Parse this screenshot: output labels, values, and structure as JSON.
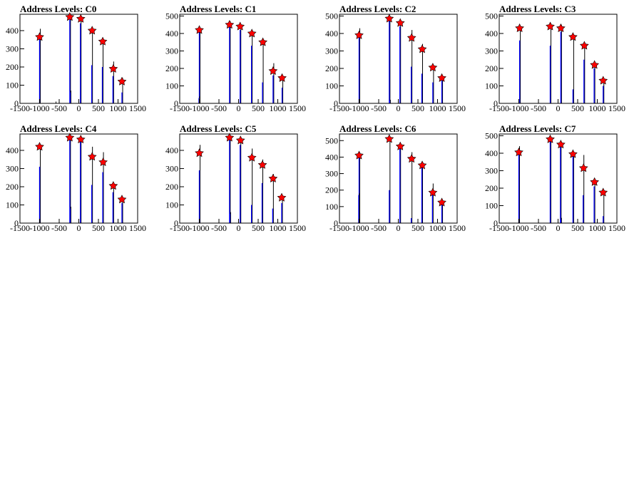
{
  "chart_data": [
    {
      "type": "bar",
      "title": "Address Levels: C0",
      "xlim": [
        -1500,
        1500
      ],
      "ylim": [
        0,
        490
      ],
      "xticks": [
        -1500,
        -1000,
        -500,
        0,
        500,
        1000,
        1500
      ],
      "yticks": [
        0,
        100,
        200,
        300,
        400
      ],
      "peaks": [
        {
          "x": -1000,
          "y": 365
        },
        {
          "x": -230,
          "y": 475
        },
        {
          "x": 50,
          "y": 465
        },
        {
          "x": 340,
          "y": 400
        },
        {
          "x": 610,
          "y": 340
        },
        {
          "x": 880,
          "y": 190
        },
        {
          "x": 1100,
          "y": 120
        }
      ],
      "bars": [
        {
          "x": -1000,
          "black": 410,
          "blue": 370
        },
        {
          "x": -230,
          "black": 480,
          "blue": 460
        },
        {
          "x": -220,
          "black": 70,
          "blue": 60
        },
        {
          "x": 40,
          "black": 470,
          "blue": 440
        },
        {
          "x": 330,
          "black": 400,
          "blue": 210
        },
        {
          "x": 600,
          "black": 360,
          "blue": 200
        },
        {
          "x": 870,
          "black": 230,
          "blue": 150
        },
        {
          "x": 1100,
          "black": 140,
          "blue": 60
        },
        {
          "x": -600,
          "black": 10,
          "blue": 0
        }
      ]
    },
    {
      "type": "bar",
      "title": "Address Levels: C1",
      "xlim": [
        -1500,
        1500
      ],
      "ylim": [
        0,
        510
      ],
      "xticks": [
        -1500,
        -1000,
        -500,
        0,
        500,
        1000,
        1500
      ],
      "yticks": [
        0,
        100,
        200,
        300,
        400,
        500
      ],
      "peaks": [
        {
          "x": -1000,
          "y": 420
        },
        {
          "x": -230,
          "y": 450
        },
        {
          "x": 40,
          "y": 440
        },
        {
          "x": 340,
          "y": 400
        },
        {
          "x": 620,
          "y": 350
        },
        {
          "x": 880,
          "y": 185
        },
        {
          "x": 1110,
          "y": 145
        }
      ],
      "bars": [
        {
          "x": -1000,
          "black": 430,
          "blue": 420
        },
        {
          "x": -1010,
          "black": 40,
          "blue": 30
        },
        {
          "x": -230,
          "black": 470,
          "blue": 450
        },
        {
          "x": 40,
          "black": 450,
          "blue": 420
        },
        {
          "x": 330,
          "black": 410,
          "blue": 330
        },
        {
          "x": 610,
          "black": 360,
          "blue": 120
        },
        {
          "x": 880,
          "black": 230,
          "blue": 160
        },
        {
          "x": 1110,
          "black": 150,
          "blue": 90
        }
      ]
    },
    {
      "type": "bar",
      "title": "Address Levels: C2",
      "xlim": [
        -1500,
        1500
      ],
      "ylim": [
        0,
        510
      ],
      "xticks": [
        -1500,
        -1000,
        -500,
        0,
        500,
        1000,
        1500
      ],
      "yticks": [
        0,
        100,
        200,
        300,
        400,
        500
      ],
      "peaks": [
        {
          "x": -1000,
          "y": 390
        },
        {
          "x": -230,
          "y": 485
        },
        {
          "x": 50,
          "y": 460
        },
        {
          "x": 340,
          "y": 375
        },
        {
          "x": 610,
          "y": 310
        },
        {
          "x": 880,
          "y": 205
        },
        {
          "x": 1110,
          "y": 145
        }
      ],
      "bars": [
        {
          "x": -1000,
          "black": 430,
          "blue": 410
        },
        {
          "x": -230,
          "black": 500,
          "blue": 480
        },
        {
          "x": -220,
          "black": 20,
          "blue": 15
        },
        {
          "x": 40,
          "black": 470,
          "blue": 440
        },
        {
          "x": 330,
          "black": 420,
          "blue": 210
        },
        {
          "x": 600,
          "black": 340,
          "blue": 170
        },
        {
          "x": 880,
          "black": 220,
          "blue": 120
        },
        {
          "x": 1110,
          "black": 150,
          "blue": 130
        }
      ]
    },
    {
      "type": "bar",
      "title": "Address Levels: C3",
      "xlim": [
        -1500,
        1500
      ],
      "ylim": [
        0,
        510
      ],
      "xticks": [
        -1500,
        -1000,
        -500,
        0,
        500,
        1000,
        1500
      ],
      "yticks": [
        0,
        100,
        200,
        300,
        400,
        500
      ],
      "peaks": [
        {
          "x": -980,
          "y": 430
        },
        {
          "x": -200,
          "y": 440
        },
        {
          "x": 70,
          "y": 430
        },
        {
          "x": 380,
          "y": 380
        },
        {
          "x": 670,
          "y": 330
        },
        {
          "x": 930,
          "y": 220
        },
        {
          "x": 1150,
          "y": 130
        }
      ],
      "bars": [
        {
          "x": -980,
          "black": 440,
          "blue": 360
        },
        {
          "x": -200,
          "black": 460,
          "blue": 330
        },
        {
          "x": 70,
          "black": 450,
          "blue": 410
        },
        {
          "x": 380,
          "black": 390,
          "blue": 80
        },
        {
          "x": 660,
          "black": 340,
          "blue": 250
        },
        {
          "x": 920,
          "black": 230,
          "blue": 200
        },
        {
          "x": 1150,
          "black": 140,
          "blue": 100
        }
      ]
    },
    {
      "type": "bar",
      "title": "Address Levels: C4",
      "xlim": [
        -1500,
        1500
      ],
      "ylim": [
        0,
        490
      ],
      "xticks": [
        -1500,
        -1000,
        -500,
        0,
        500,
        1000,
        1500
      ],
      "yticks": [
        0,
        100,
        200,
        300,
        400
      ],
      "peaks": [
        {
          "x": -1000,
          "y": 420
        },
        {
          "x": -230,
          "y": 470
        },
        {
          "x": 50,
          "y": 460
        },
        {
          "x": 340,
          "y": 365
        },
        {
          "x": 620,
          "y": 335
        },
        {
          "x": 880,
          "y": 205
        },
        {
          "x": 1100,
          "y": 130
        }
      ],
      "bars": [
        {
          "x": -1000,
          "black": 420,
          "blue": 310
        },
        {
          "x": -230,
          "black": 490,
          "blue": 460
        },
        {
          "x": -220,
          "black": 90,
          "blue": 80
        },
        {
          "x": 40,
          "black": 470,
          "blue": 450
        },
        {
          "x": 330,
          "black": 420,
          "blue": 210
        },
        {
          "x": 610,
          "black": 390,
          "blue": 280
        },
        {
          "x": 870,
          "black": 210,
          "blue": 170
        },
        {
          "x": 1100,
          "black": 140,
          "blue": 110
        }
      ]
    },
    {
      "type": "bar",
      "title": "Address Levels: C5",
      "xlim": [
        -1500,
        1500
      ],
      "ylim": [
        0,
        490
      ],
      "xticks": [
        -1500,
        -1000,
        -500,
        0,
        500,
        1000,
        1500
      ],
      "yticks": [
        0,
        100,
        200,
        300,
        400
      ],
      "peaks": [
        {
          "x": -1000,
          "y": 385
        },
        {
          "x": -230,
          "y": 470
        },
        {
          "x": 50,
          "y": 455
        },
        {
          "x": 340,
          "y": 360
        },
        {
          "x": 610,
          "y": 320
        },
        {
          "x": 880,
          "y": 245
        },
        {
          "x": 1100,
          "y": 140
        }
      ],
      "bars": [
        {
          "x": -1000,
          "black": 430,
          "blue": 290
        },
        {
          "x": -230,
          "black": 480,
          "blue": 460
        },
        {
          "x": -220,
          "black": 60,
          "blue": 50
        },
        {
          "x": 40,
          "black": 460,
          "blue": 430
        },
        {
          "x": 330,
          "black": 410,
          "blue": 100
        },
        {
          "x": 600,
          "black": 350,
          "blue": 220
        },
        {
          "x": 870,
          "black": 270,
          "blue": 80
        },
        {
          "x": 1100,
          "black": 150,
          "blue": 110
        }
      ]
    },
    {
      "type": "bar",
      "title": "Address Levels: C6",
      "xlim": [
        -1500,
        1500
      ],
      "ylim": [
        0,
        540
      ],
      "xticks": [
        -1500,
        -1000,
        -500,
        0,
        500,
        1000,
        1500
      ],
      "yticks": [
        0,
        100,
        200,
        300,
        400,
        500
      ],
      "peaks": [
        {
          "x": -1000,
          "y": 410
        },
        {
          "x": -230,
          "y": 510
        },
        {
          "x": 50,
          "y": 465
        },
        {
          "x": 340,
          "y": 390
        },
        {
          "x": 610,
          "y": 350
        },
        {
          "x": 880,
          "y": 185
        },
        {
          "x": 1110,
          "y": 125
        }
      ],
      "bars": [
        {
          "x": -1000,
          "black": 430,
          "blue": 410
        },
        {
          "x": -1010,
          "black": 180,
          "blue": 170
        },
        {
          "x": -230,
          "black": 520,
          "blue": 200
        },
        {
          "x": 40,
          "black": 470,
          "blue": 450
        },
        {
          "x": 330,
          "black": 430,
          "blue": 30
        },
        {
          "x": 600,
          "black": 360,
          "blue": 340
        },
        {
          "x": 870,
          "black": 240,
          "blue": 190
        },
        {
          "x": 1110,
          "black": 140,
          "blue": 130
        }
      ]
    },
    {
      "type": "bar",
      "title": "Address Levels: C7",
      "xlim": [
        -1500,
        1500
      ],
      "ylim": [
        0,
        510
      ],
      "xticks": [
        -1500,
        -1000,
        -500,
        0,
        500,
        1000,
        1500
      ],
      "yticks": [
        0,
        100,
        200,
        300,
        400,
        500
      ],
      "peaks": [
        {
          "x": -1000,
          "y": 405
        },
        {
          "x": -200,
          "y": 480
        },
        {
          "x": 70,
          "y": 450
        },
        {
          "x": 380,
          "y": 395
        },
        {
          "x": 650,
          "y": 315
        },
        {
          "x": 930,
          "y": 235
        },
        {
          "x": 1150,
          "y": 175
        }
      ],
      "bars": [
        {
          "x": -1000,
          "black": 440,
          "blue": 410
        },
        {
          "x": -200,
          "black": 490,
          "blue": 480
        },
        {
          "x": 60,
          "black": 460,
          "blue": 440
        },
        {
          "x": 70,
          "black": 30,
          "blue": 20
        },
        {
          "x": 380,
          "black": 410,
          "blue": 390
        },
        {
          "x": 640,
          "black": 390,
          "blue": 160
        },
        {
          "x": 920,
          "black": 250,
          "blue": 210
        },
        {
          "x": 1150,
          "black": 180,
          "blue": 40
        }
      ]
    }
  ],
  "colors": {
    "frame": "#000000",
    "blue_bar": "#0000ff",
    "black_bar": "#000000",
    "marker_fill": "#ff0000",
    "marker_edge": "#000000"
  }
}
